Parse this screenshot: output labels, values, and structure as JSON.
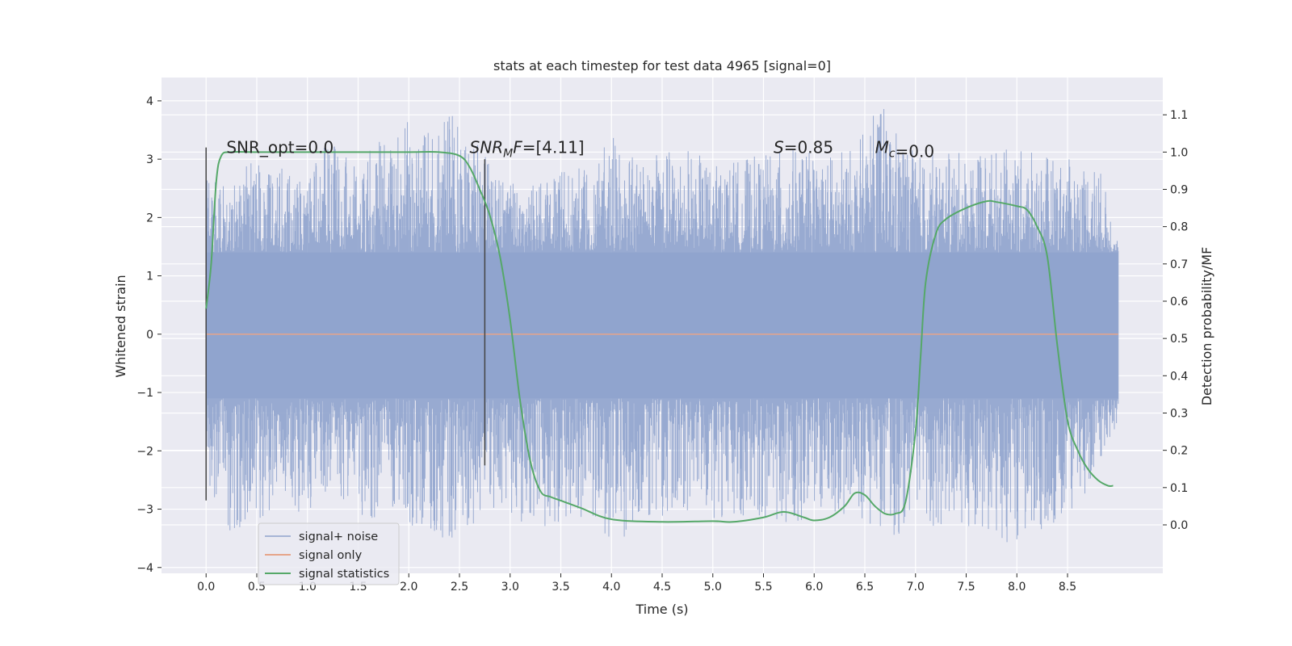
{
  "chart_data": {
    "type": "line",
    "title": "stats at each timestep for test data 4965 [signal=0]",
    "xlabel": "Time (s)",
    "ylabel": "Whitened strain",
    "y2label": "Detection probability/MF",
    "xlim": [
      -0.44,
      9.44
    ],
    "ylim": [
      -4.1,
      4.4
    ],
    "y2lim": [
      -0.13,
      1.2
    ],
    "x_ticks": [
      0.0,
      0.5,
      1.0,
      1.5,
      2.0,
      2.5,
      3.0,
      3.5,
      4.0,
      4.5,
      5.0,
      5.5,
      6.0,
      6.5,
      7.0,
      7.5,
      8.0,
      8.5
    ],
    "x_tick_labels": [
      "0.0",
      "0.5",
      "1.0",
      "1.5",
      "2.0",
      "2.5",
      "3.0",
      "3.5",
      "4.0",
      "4.5",
      "5.0",
      "5.5",
      "6.0",
      "6.5",
      "7.0",
      "7.5",
      "8.0",
      "8.5"
    ],
    "y_ticks": [
      4,
      3,
      2,
      1,
      0,
      -1,
      -2,
      -3,
      -4
    ],
    "y_tick_labels": [
      "4",
      "3",
      "2",
      "1",
      "0",
      "−1",
      "−2",
      "−3",
      "−4"
    ],
    "y2_ticks": [
      1.1,
      1.0,
      0.9,
      0.8,
      0.7,
      0.6,
      0.5,
      0.4,
      0.3,
      0.2,
      0.1,
      0.0
    ],
    "y2_tick_labels": [
      "1.1",
      "1.0",
      "0.9",
      "0.8",
      "0.7",
      "0.6",
      "0.5",
      "0.4",
      "0.3",
      "0.2",
      "0.1",
      "0.0"
    ],
    "grid": true,
    "series": [
      {
        "name": "signal+ noise",
        "color": "#8fa3cd",
        "axis": "left",
        "kind": "noise",
        "x_range": [
          0.0,
          9.0
        ],
        "core_band": [
          -1.1,
          1.4
        ],
        "peaks_max": [
          [
            0.0,
            2.8
          ],
          [
            0.2,
            2.5
          ],
          [
            0.4,
            2.9
          ],
          [
            0.55,
            3.1
          ],
          [
            0.8,
            2.8
          ],
          [
            1.0,
            2.6
          ],
          [
            1.2,
            3.4
          ],
          [
            1.5,
            2.9
          ],
          [
            1.8,
            3.6
          ],
          [
            2.2,
            3.7
          ],
          [
            2.5,
            3.8
          ],
          [
            2.8,
            3.0
          ],
          [
            3.0,
            2.6
          ],
          [
            3.3,
            2.6
          ],
          [
            3.5,
            2.8
          ],
          [
            3.8,
            2.9
          ],
          [
            4.0,
            3.4
          ],
          [
            4.3,
            3.0
          ],
          [
            4.5,
            3.1
          ],
          [
            4.7,
            3.3
          ],
          [
            5.0,
            2.9
          ],
          [
            5.5,
            3.1
          ],
          [
            5.8,
            3.2
          ],
          [
            6.0,
            3.1
          ],
          [
            6.4,
            3.2
          ],
          [
            6.65,
            4.0
          ],
          [
            7.0,
            3.1
          ],
          [
            7.3,
            3.1
          ],
          [
            7.8,
            3.2
          ],
          [
            8.2,
            3.1
          ],
          [
            8.5,
            3.0
          ],
          [
            8.8,
            3.0
          ],
          [
            9.0,
            1.6
          ]
        ],
        "peaks_min": [
          [
            0.0,
            -2.8
          ],
          [
            0.2,
            -3.4
          ],
          [
            0.5,
            -3.2
          ],
          [
            0.8,
            -3.2
          ],
          [
            1.1,
            -3.0
          ],
          [
            1.3,
            -2.9
          ],
          [
            1.6,
            -3.2
          ],
          [
            1.9,
            -3.2
          ],
          [
            2.2,
            -3.4
          ],
          [
            2.5,
            -3.6
          ],
          [
            2.8,
            -3.0
          ],
          [
            3.2,
            -3.4
          ],
          [
            3.5,
            -3.3
          ],
          [
            3.8,
            -3.2
          ],
          [
            4.0,
            -3.7
          ],
          [
            4.4,
            -3.2
          ],
          [
            4.8,
            -3.0
          ],
          [
            5.0,
            -3.2
          ],
          [
            5.4,
            -3.1
          ],
          [
            5.8,
            -3.3
          ],
          [
            6.0,
            -3.2
          ],
          [
            6.3,
            -3.2
          ],
          [
            6.6,
            -3.3
          ],
          [
            7.0,
            -3.6
          ],
          [
            7.2,
            -3.3
          ],
          [
            7.6,
            -3.3
          ],
          [
            8.0,
            -3.7
          ],
          [
            8.3,
            -3.3
          ],
          [
            8.6,
            -3.0
          ],
          [
            9.0,
            -1.5
          ]
        ]
      },
      {
        "name": "signal only",
        "color": "#e6a58a",
        "axis": "left",
        "x": [
          0.0,
          9.0
        ],
        "y": [
          0.0,
          0.0
        ]
      },
      {
        "name": "signal statistics",
        "color": "#55a868",
        "axis": "right",
        "x": [
          0.0,
          0.05,
          0.1,
          0.15,
          0.25,
          0.5,
          1.0,
          1.5,
          2.0,
          2.3,
          2.5,
          2.6,
          2.7,
          2.8,
          2.9,
          3.0,
          3.1,
          3.2,
          3.3,
          3.4,
          3.5,
          3.7,
          4.0,
          4.5,
          5.0,
          5.2,
          5.5,
          5.7,
          5.9,
          6.0,
          6.15,
          6.3,
          6.4,
          6.5,
          6.6,
          6.7,
          6.8,
          6.9,
          7.0,
          7.05,
          7.1,
          7.2,
          7.3,
          7.5,
          7.7,
          7.8,
          8.0,
          8.1,
          8.2,
          8.3,
          8.4,
          8.5,
          8.6,
          8.7,
          8.8,
          8.9,
          8.95
        ],
        "y": [
          0.58,
          0.7,
          0.92,
          0.99,
          1.0,
          1.0,
          1.0,
          1.0,
          1.0,
          1.0,
          0.99,
          0.96,
          0.9,
          0.83,
          0.72,
          0.55,
          0.33,
          0.17,
          0.09,
          0.075,
          0.065,
          0.045,
          0.015,
          0.008,
          0.01,
          0.008,
          0.02,
          0.035,
          0.02,
          0.012,
          0.02,
          0.05,
          0.085,
          0.08,
          0.05,
          0.03,
          0.03,
          0.06,
          0.25,
          0.45,
          0.65,
          0.78,
          0.82,
          0.85,
          0.868,
          0.866,
          0.855,
          0.845,
          0.8,
          0.72,
          0.48,
          0.28,
          0.2,
          0.15,
          0.12,
          0.105,
          0.105
        ]
      }
    ],
    "vlines": [
      {
        "x": 0.0,
        "y": [
          -2.85,
          3.2
        ],
        "color": "#444444"
      },
      {
        "x": 2.75,
        "y": [
          -2.25,
          3.0
        ],
        "color": "#444444"
      }
    ],
    "annotations": [
      {
        "label": "SNR_opt",
        "value": "=0.0",
        "x": 0.2,
        "y": 3.2,
        "style": "plain"
      },
      {
        "label": "SNR",
        "sub": "M",
        "after_sub": "F",
        "value": "=[4.11]",
        "x": 2.6,
        "y": 3.2,
        "style": "math"
      },
      {
        "label": "S",
        "value": "=0.85",
        "x": 5.6,
        "y": 3.2,
        "style": "math"
      },
      {
        "label": "M",
        "sub": "c",
        "value": "=0.0",
        "x": 6.6,
        "y": 3.2,
        "style": "math"
      }
    ],
    "legend": {
      "position": "lower-left"
    }
  }
}
